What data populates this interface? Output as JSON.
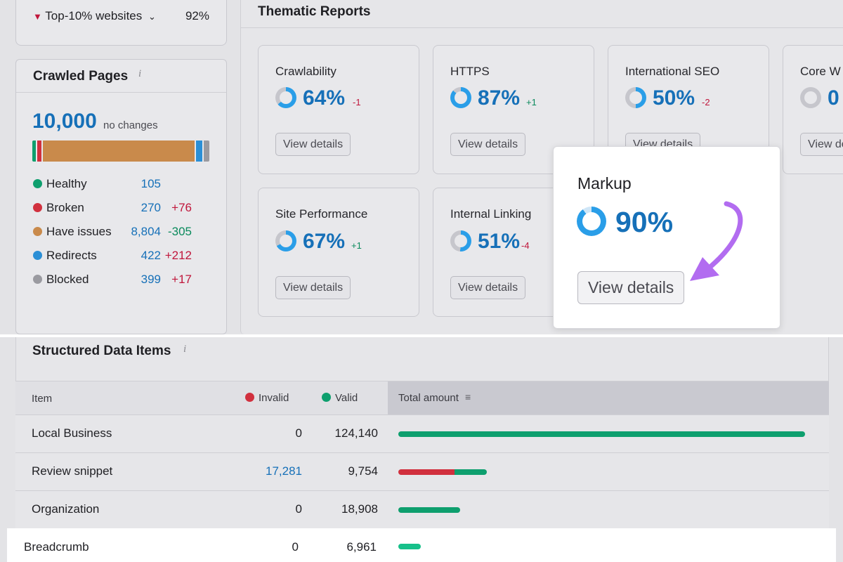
{
  "benchmark": {
    "label": "Top-10% websites",
    "value": "92%"
  },
  "crawled": {
    "title": "Crawled Pages",
    "total": "10,000",
    "total_note": "no changes",
    "legend": [
      {
        "label": "Healthy",
        "value": "105",
        "delta": "",
        "color": "#0e9f6e"
      },
      {
        "label": "Broken",
        "value": "270",
        "delta": "+76",
        "color": "#d1303e"
      },
      {
        "label": "Have issues",
        "value": "8,804",
        "delta": "-305",
        "color": "#c98a4b"
      },
      {
        "label": "Redirects",
        "value": "422",
        "delta": "+212",
        "color": "#2b8fd6"
      },
      {
        "label": "Blocked",
        "value": "399",
        "delta": "+17",
        "color": "#9a9aa0"
      }
    ]
  },
  "thematic": {
    "title": "Thematic Reports",
    "button_label": "View details",
    "cards": [
      {
        "title": "Crawlability",
        "percent": "64%",
        "delta": "-1",
        "delta_color": "red",
        "fill": 64
      },
      {
        "title": "HTTPS",
        "percent": "87%",
        "delta": "+1",
        "delta_color": "green",
        "fill": 87
      },
      {
        "title": "International SEO",
        "percent": "50%",
        "delta": "-2",
        "delta_color": "red",
        "fill": 50
      },
      {
        "title": "Core W",
        "percent": "0",
        "delta": "",
        "delta_color": "red",
        "fill": 0
      },
      {
        "title": "Site Performance",
        "percent": "67%",
        "delta": "+1",
        "delta_color": "green",
        "fill": 67
      },
      {
        "title": "Internal Linking",
        "percent": "51%",
        "delta": "-4",
        "delta_color": "red",
        "fill": 51
      }
    ],
    "markup": {
      "title": "Markup",
      "percent": "90%",
      "fill": 90,
      "button_label": "View details"
    }
  },
  "structured": {
    "title": "Structured Data Items",
    "columns": {
      "item": "Item",
      "invalid": "Invalid",
      "valid": "Valid",
      "total": "Total amount"
    },
    "rows": [
      {
        "name": "Local Business",
        "invalid": "0",
        "valid": "124,140",
        "invalid_frac": 0,
        "valid_frac": 1.0
      },
      {
        "name": "Review snippet",
        "invalid": "17,281",
        "valid": "9,754",
        "invalid_frac": 0.139,
        "valid_frac": 0.079
      },
      {
        "name": "Organization",
        "invalid": "0",
        "valid": "18,908",
        "invalid_frac": 0,
        "valid_frac": 0.152
      },
      {
        "name": "Breadcrumb",
        "invalid": "0",
        "valid": "6,961",
        "invalid_frac": 0,
        "valid_frac": 0.056
      }
    ]
  },
  "colors": {
    "accent": "#1670b8",
    "valid": "#0e9f6e",
    "invalid": "#d1303e",
    "highlight": "#ffffff",
    "arrow": "#b26cf0"
  }
}
